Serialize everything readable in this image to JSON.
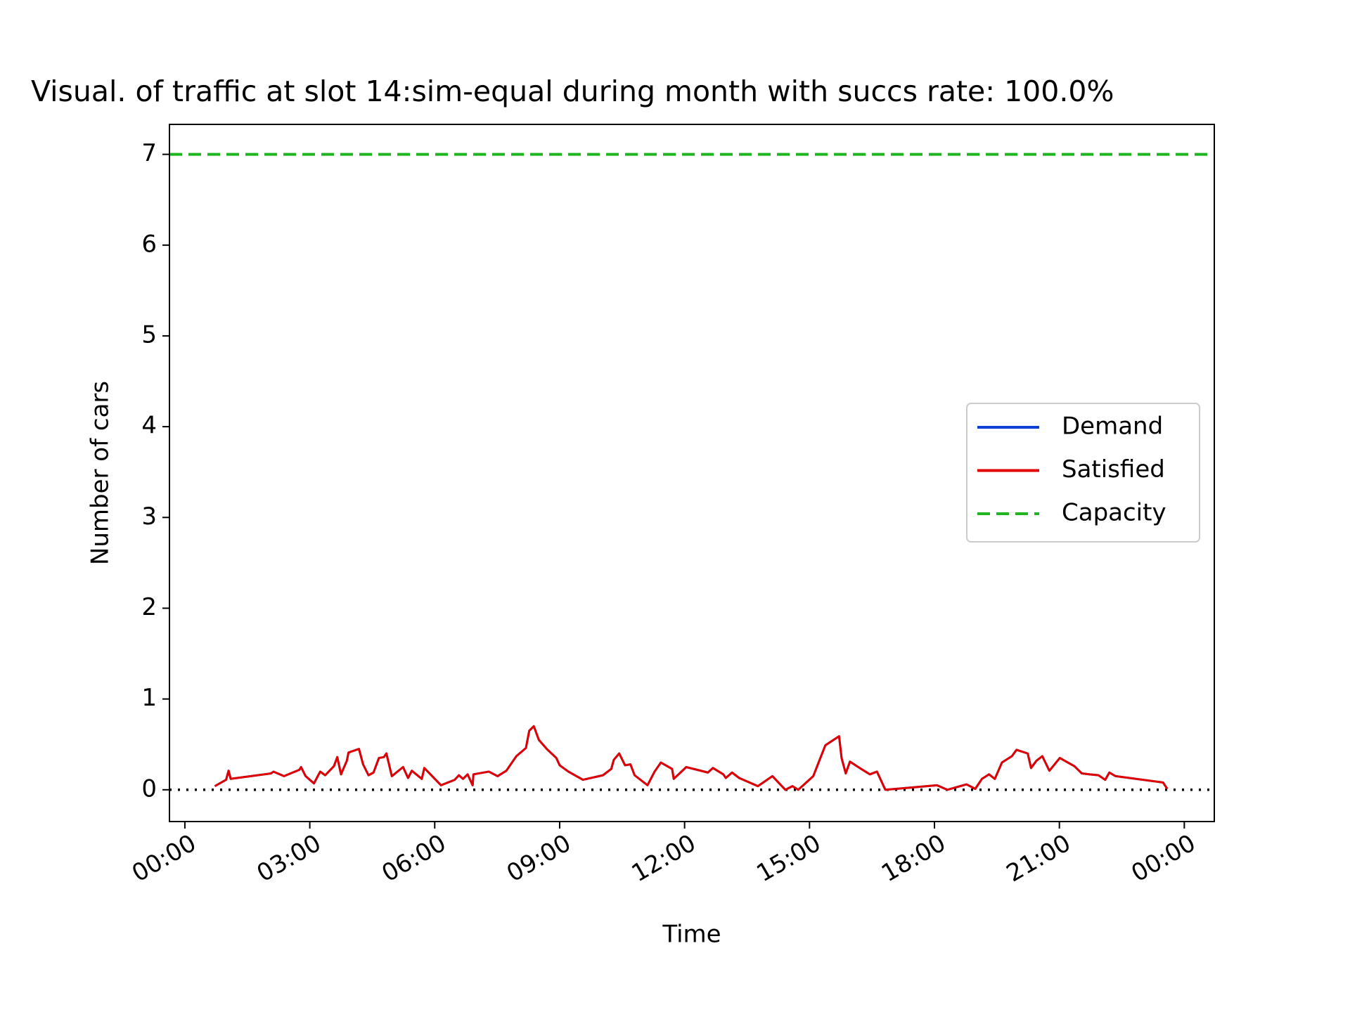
{
  "chart_data": {
    "type": "line",
    "title": "Visual. of traffic at slot 14:sim-equal during month with succs rate: 100.0%",
    "x_label": "Time",
    "y_label": "Number of cars",
    "x": [
      0.72,
      0.99,
      1.05,
      1.1,
      2.07,
      2.13,
      2.38,
      2.75,
      2.79,
      2.9,
      3.1,
      3.25,
      3.37,
      3.58,
      3.66,
      3.75,
      3.89,
      3.93,
      4.18,
      4.28,
      4.41,
      4.53,
      4.66,
      4.78,
      4.84,
      4.97,
      5.24,
      5.36,
      5.45,
      5.69,
      5.75,
      6.15,
      6.48,
      6.58,
      6.68,
      6.79,
      6.91,
      6.93,
      7.3,
      7.51,
      7.72,
      7.96,
      8.19,
      8.27,
      8.38,
      8.5,
      8.69,
      8.92,
      9.0,
      9.21,
      9.56,
      10.04,
      10.24,
      10.3,
      10.43,
      10.57,
      10.7,
      10.8,
      11.11,
      11.28,
      11.43,
      11.7,
      11.74,
      12.04,
      12.56,
      12.68,
      12.93,
      12.99,
      13.14,
      13.31,
      13.76,
      14.11,
      14.42,
      14.59,
      14.73,
      15.09,
      15.38,
      15.71,
      15.77,
      15.87,
      15.97,
      16.24,
      16.45,
      16.62,
      16.82,
      18.06,
      18.31,
      18.77,
      18.98,
      19.14,
      19.31,
      19.45,
      19.62,
      19.86,
      19.97,
      20.24,
      20.32,
      20.45,
      20.59,
      20.76,
      21.01,
      21.36,
      21.54,
      21.73,
      21.94,
      22.1,
      22.2,
      22.35,
      23.49,
      23.59
    ],
    "series": [
      {
        "name": "Demand",
        "color": "#0b3fd6",
        "style": "solid",
        "values": [
          0.04,
          0.11,
          0.21,
          0.12,
          0.18,
          0.2,
          0.15,
          0.22,
          0.25,
          0.15,
          0.07,
          0.2,
          0.16,
          0.26,
          0.36,
          0.17,
          0.32,
          0.41,
          0.45,
          0.28,
          0.16,
          0.19,
          0.35,
          0.36,
          0.4,
          0.15,
          0.25,
          0.13,
          0.21,
          0.12,
          0.24,
          0.05,
          0.11,
          0.16,
          0.12,
          0.17,
          0.05,
          0.17,
          0.2,
          0.15,
          0.21,
          0.37,
          0.46,
          0.65,
          0.7,
          0.55,
          0.45,
          0.35,
          0.27,
          0.2,
          0.11,
          0.16,
          0.23,
          0.33,
          0.4,
          0.27,
          0.28,
          0.16,
          0.05,
          0.2,
          0.3,
          0.23,
          0.12,
          0.25,
          0.19,
          0.24,
          0.17,
          0.13,
          0.19,
          0.13,
          0.04,
          0.15,
          0.0,
          0.04,
          0.0,
          0.15,
          0.49,
          0.59,
          0.35,
          0.18,
          0.31,
          0.23,
          0.17,
          0.2,
          0.0,
          0.05,
          0.0,
          0.06,
          0.01,
          0.12,
          0.17,
          0.12,
          0.3,
          0.37,
          0.44,
          0.4,
          0.24,
          0.32,
          0.37,
          0.21,
          0.35,
          0.26,
          0.18,
          0.17,
          0.16,
          0.11,
          0.19,
          0.15,
          0.08,
          0.01
        ]
      },
      {
        "name": "Satisfied",
        "color": "#e00000",
        "style": "solid",
        "values": [
          0.04,
          0.11,
          0.21,
          0.12,
          0.18,
          0.2,
          0.15,
          0.22,
          0.25,
          0.15,
          0.07,
          0.2,
          0.16,
          0.26,
          0.36,
          0.17,
          0.32,
          0.41,
          0.45,
          0.28,
          0.16,
          0.19,
          0.35,
          0.36,
          0.4,
          0.15,
          0.25,
          0.13,
          0.21,
          0.12,
          0.24,
          0.05,
          0.11,
          0.16,
          0.12,
          0.17,
          0.05,
          0.17,
          0.2,
          0.15,
          0.21,
          0.37,
          0.46,
          0.65,
          0.7,
          0.55,
          0.45,
          0.35,
          0.27,
          0.2,
          0.11,
          0.16,
          0.23,
          0.33,
          0.4,
          0.27,
          0.28,
          0.16,
          0.05,
          0.2,
          0.3,
          0.23,
          0.12,
          0.25,
          0.19,
          0.24,
          0.17,
          0.13,
          0.19,
          0.13,
          0.04,
          0.15,
          0.0,
          0.04,
          0.0,
          0.15,
          0.49,
          0.59,
          0.35,
          0.18,
          0.31,
          0.23,
          0.17,
          0.2,
          0.0,
          0.05,
          0.0,
          0.06,
          0.01,
          0.12,
          0.17,
          0.12,
          0.3,
          0.37,
          0.44,
          0.4,
          0.24,
          0.32,
          0.37,
          0.21,
          0.35,
          0.26,
          0.18,
          0.17,
          0.16,
          0.11,
          0.19,
          0.15,
          0.08,
          0.01
        ]
      },
      {
        "name": "Capacity",
        "color": "#1fb51f",
        "style": "dashed",
        "value": 7
      }
    ],
    "xlim": [
      -0.37,
      24.72
    ],
    "ylim": [
      -0.35,
      7.33
    ],
    "xticks": [
      {
        "value": 0,
        "label": "00:00"
      },
      {
        "value": 3,
        "label": "03:00"
      },
      {
        "value": 6,
        "label": "06:00"
      },
      {
        "value": 9,
        "label": "09:00"
      },
      {
        "value": 12,
        "label": "12:00"
      },
      {
        "value": 15,
        "label": "15:00"
      },
      {
        "value": 18,
        "label": "18:00"
      },
      {
        "value": 21,
        "label": "21:00"
      },
      {
        "value": 24,
        "label": "00:00"
      }
    ],
    "yticks": [
      0,
      1,
      2,
      3,
      4,
      5,
      6,
      7
    ],
    "zero_line": true,
    "legend": "center right",
    "grid": false
  }
}
